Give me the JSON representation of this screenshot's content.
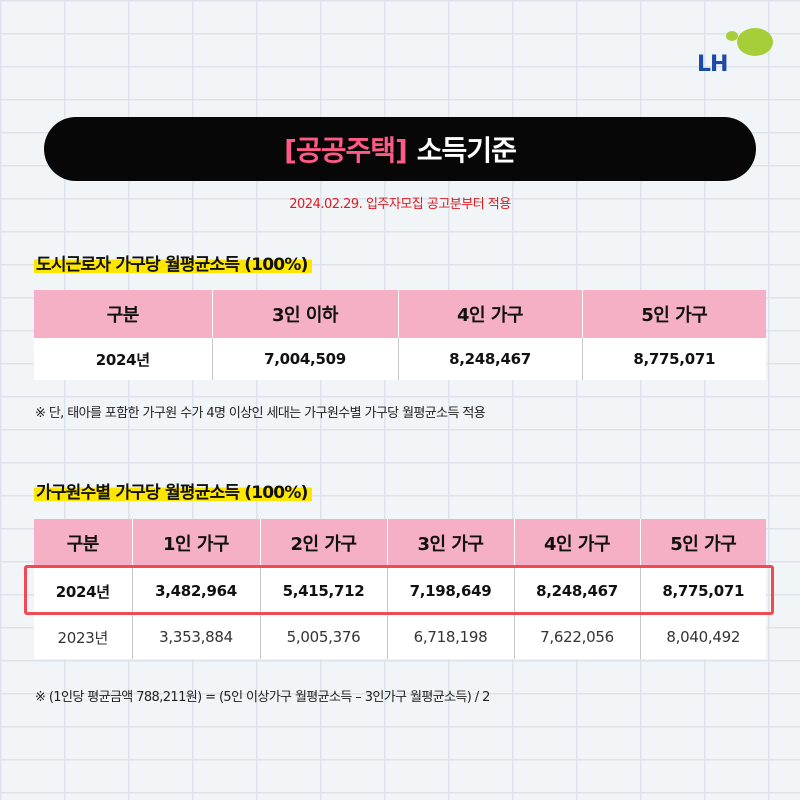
{
  "logo": {
    "text": "LH",
    "colors": {
      "text": "#1c4aa6",
      "shape": "#a6ce39"
    }
  },
  "title": {
    "accent": "[공공주택]",
    "rest": "소득기준"
  },
  "subtitle": "2024.02.29. 입주자모집 공고분부터 적용",
  "section1": {
    "label": "도시근로자 가구당 월평균소득 (100%)",
    "headers": [
      "구분",
      "3인 이하",
      "4인 가구",
      "5인 가구"
    ],
    "rows": [
      [
        "2024년",
        "7,004,509",
        "8,248,467",
        "8,775,071"
      ]
    ],
    "note": "※ 단, 태아를 포함한 가구원 수가 4명 이상인 세대는 가구원수별 가구당 월평균소득 적용"
  },
  "section2": {
    "label": "가구원수별 가구당 월평균소득 (100%)",
    "headers": [
      "구분",
      "1인 가구",
      "2인 가구",
      "3인 가구",
      "4인 가구",
      "5인 가구"
    ],
    "rows": [
      [
        "2024년",
        "3,482,964",
        "5,415,712",
        "7,198,649",
        "8,248,467",
        "8,775,071"
      ],
      [
        "2023년",
        "3,353,884",
        "5,005,376",
        "6,718,198",
        "7,622,056",
        "8,040,492"
      ]
    ],
    "note": "※ (1인당 평균금액 788,211원) = (5인 이상가구 월평균소득 – 3인가구 월평균소득) / 2"
  },
  "colors": {
    "accent": "#ff5a86",
    "header_bg": "#f6b0c6",
    "highlight": "#ffe600",
    "row_outline": "#f04a54",
    "subtitle": "#e0191f"
  }
}
